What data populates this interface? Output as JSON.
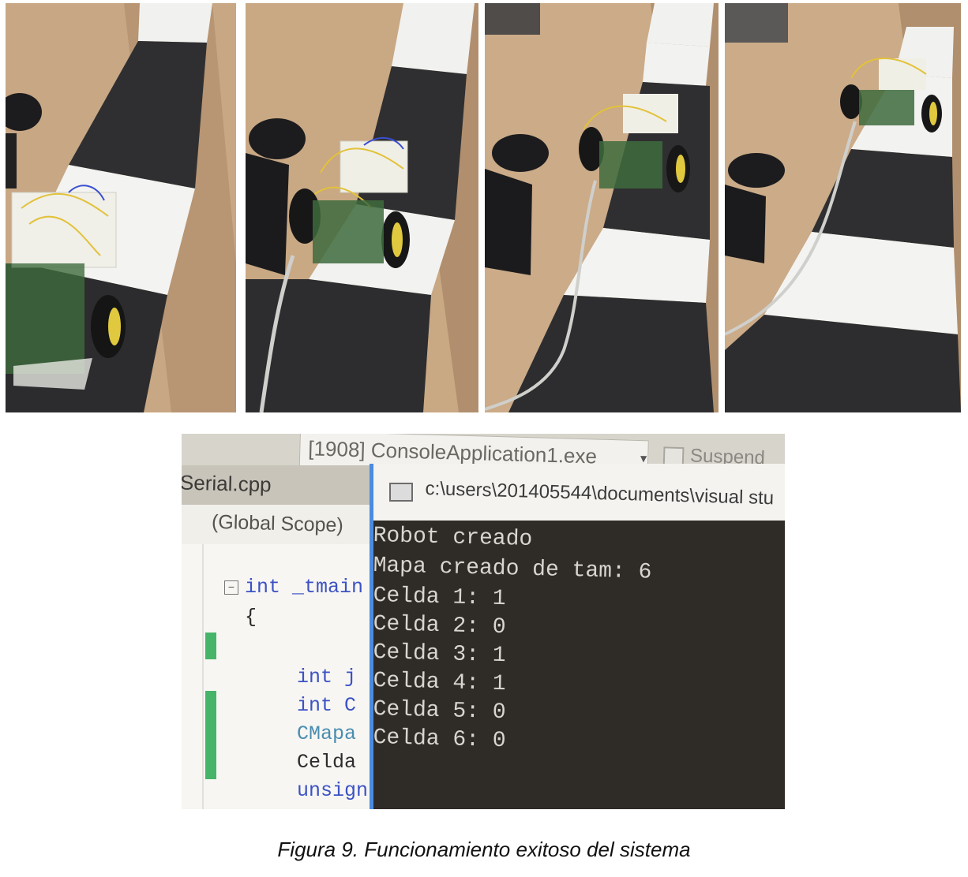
{
  "photos": [
    {
      "label": "robot-photo-1"
    },
    {
      "label": "robot-photo-2"
    },
    {
      "label": "robot-photo-3"
    },
    {
      "label": "robot-photo-4"
    }
  ],
  "screen": {
    "process_combo": "[1908] ConsoleApplication1.exe",
    "suspend_label": "Suspend",
    "file_tab": "Serial.cpp",
    "scope": "(Global Scope)",
    "code_lines": [
      "int _tmain",
      "{",
      "int j",
      "int C",
      "CMapa",
      "Celda",
      "unsign"
    ],
    "console_title": "c:\\users\\201405544\\documents\\visual stu",
    "console_lines": [
      "Robot creado",
      "Mapa creado de tam: 6",
      "Celda 1: 1",
      "Celda 2: 0",
      "Celda 3: 1",
      "Celda 4: 1",
      "Celda 5: 0",
      "Celda 6: 0"
    ]
  },
  "caption": "Figura 9. Funcionamiento exitoso del sistema"
}
